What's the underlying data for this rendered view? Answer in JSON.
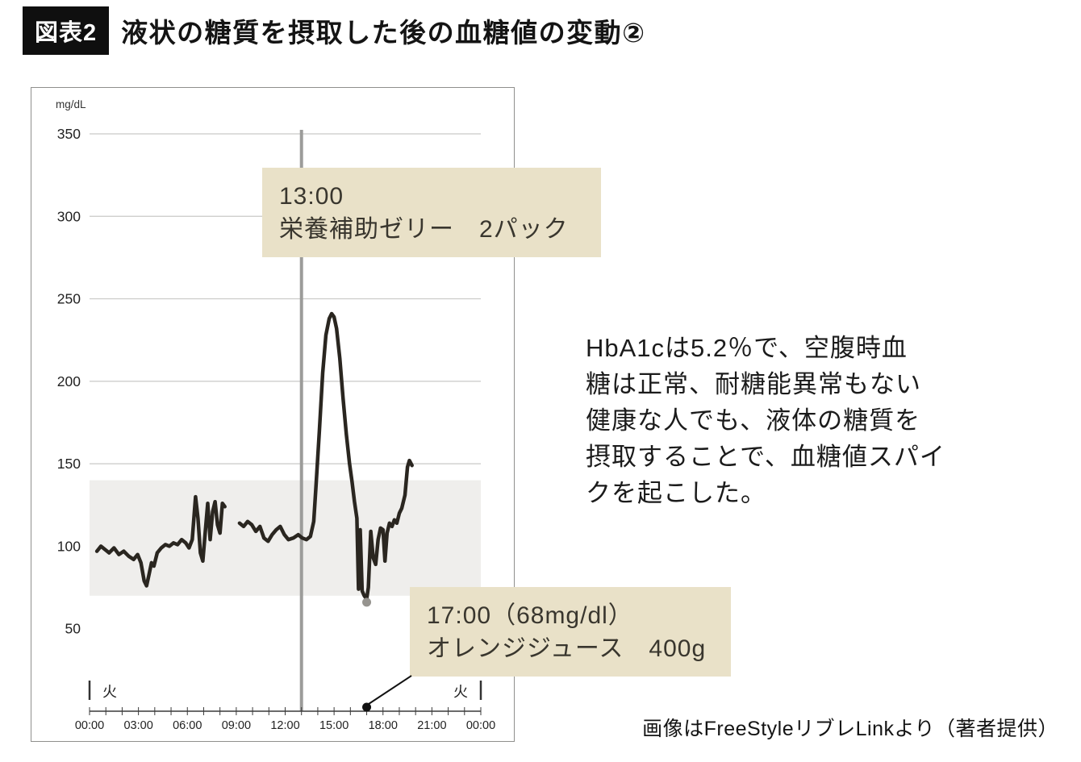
{
  "header": {
    "figure_label": "図表2",
    "title": "液状の糖質を摂取した後の血糖値の変動②"
  },
  "annotations": {
    "jelly": {
      "time": "13:00",
      "label": "栄養補助ゼリー　2パック"
    },
    "juice": {
      "time": "17:00（68mg/dl）",
      "label": "オレンジジュース　400g"
    }
  },
  "description": {
    "lines": [
      "HbA1cは5.2％で、空腹時血",
      "糖は正常、耐糖能異常もない",
      "健康な人でも、液体の糖質を",
      "摂取することで、血糖値スパイ",
      "クを起こした。"
    ]
  },
  "credit": {
    "text": "画像はFreeStyleリブレLinkより（著者提供）"
  },
  "colors": {
    "callout_bg": "#e9e1c8",
    "glucose_line": "#2a2620",
    "event_line": "#9c9c9a",
    "target_band": "#efeeec",
    "figure_label_bg": "#0f0f0f",
    "annotation_pointer": "#111111"
  },
  "chart_data": {
    "type": "line",
    "ylabel": "mg/dL",
    "ylim": [
      0,
      350
    ],
    "xlim_hours": [
      0,
      24
    ],
    "y_ticks": [
      350,
      300,
      250,
      200,
      150,
      100,
      50
    ],
    "gridline_values": [
      350,
      300,
      250,
      200,
      150
    ],
    "x_tick_hours": [
      0,
      3,
      6,
      9,
      12,
      15,
      18,
      21,
      24
    ],
    "x_tick_labels": [
      "00:00",
      "03:00",
      "06:00",
      "09:00",
      "12:00",
      "15:00",
      "18:00",
      "21:00",
      "00:00"
    ],
    "day_label_left": "火",
    "day_label_right": "火",
    "target_band": {
      "min": 70,
      "max": 140
    },
    "event_line_hour": 13,
    "low_point": {
      "hour": 17.0,
      "value": 68
    },
    "pointer_dot_hour": 17.0,
    "series": [
      {
        "name": "glucose",
        "unit": "mg/dL",
        "segments": [
          [
            [
              0.45,
              97
            ],
            [
              0.7,
              100
            ],
            [
              0.95,
              98
            ],
            [
              1.2,
              96
            ],
            [
              1.5,
              99
            ],
            [
              1.8,
              95
            ],
            [
              2.1,
              97
            ],
            [
              2.4,
              94
            ],
            [
              2.7,
              92
            ],
            [
              2.95,
              95
            ],
            [
              3.15,
              90
            ],
            [
              3.35,
              79
            ],
            [
              3.5,
              76
            ],
            [
              3.65,
              83
            ],
            [
              3.8,
              90
            ],
            [
              3.95,
              88
            ],
            [
              4.15,
              96
            ],
            [
              4.4,
              99
            ],
            [
              4.65,
              101
            ],
            [
              4.9,
              100
            ],
            [
              5.15,
              102
            ],
            [
              5.4,
              101
            ],
            [
              5.65,
              104
            ],
            [
              5.9,
              102
            ],
            [
              6.1,
              99
            ],
            [
              6.3,
              104
            ],
            [
              6.5,
              130
            ],
            [
              6.65,
              117
            ],
            [
              6.8,
              96
            ],
            [
              6.95,
              91
            ],
            [
              7.1,
              109
            ],
            [
              7.25,
              126
            ],
            [
              7.4,
              104
            ],
            [
              7.55,
              121
            ],
            [
              7.7,
              127
            ],
            [
              7.85,
              113
            ],
            [
              8.0,
              108
            ],
            [
              8.15,
              126
            ],
            [
              8.3,
              124
            ]
          ],
          [
            [
              9.2,
              114
            ],
            [
              9.45,
              112
            ],
            [
              9.7,
              115
            ],
            [
              9.95,
              113
            ],
            [
              10.2,
              109
            ],
            [
              10.45,
              112
            ],
            [
              10.7,
              105
            ],
            [
              10.95,
              103
            ],
            [
              11.2,
              107
            ],
            [
              11.45,
              110
            ],
            [
              11.7,
              112
            ],
            [
              11.95,
              107
            ],
            [
              12.2,
              104
            ],
            [
              12.5,
              105
            ],
            [
              12.8,
              107
            ],
            [
              13.05,
              105
            ],
            [
              13.3,
              104
            ],
            [
              13.55,
              106
            ],
            [
              13.75,
              115
            ],
            [
              13.9,
              138
            ],
            [
              14.1,
              170
            ],
            [
              14.3,
              205
            ],
            [
              14.5,
              228
            ],
            [
              14.7,
              238
            ],
            [
              14.85,
              241
            ],
            [
              15.0,
              239
            ],
            [
              15.15,
              232
            ],
            [
              15.35,
              214
            ],
            [
              15.55,
              190
            ],
            [
              15.75,
              168
            ],
            [
              15.95,
              150
            ],
            [
              16.1,
              139
            ],
            [
              16.25,
              127
            ],
            [
              16.4,
              117
            ],
            [
              16.5,
              74
            ],
            [
              16.6,
              110
            ],
            [
              16.72,
              73
            ],
            [
              16.85,
              70
            ],
            [
              17.0,
              68
            ],
            [
              17.1,
              75
            ],
            [
              17.25,
              109
            ],
            [
              17.4,
              93
            ],
            [
              17.55,
              89
            ],
            [
              17.7,
              104
            ],
            [
              17.85,
              111
            ],
            [
              18.0,
              110
            ],
            [
              18.12,
              91
            ],
            [
              18.25,
              108
            ],
            [
              18.4,
              114
            ],
            [
              18.55,
              112
            ],
            [
              18.7,
              116
            ],
            [
              18.85,
              114
            ],
            [
              19.0,
              120
            ],
            [
              19.15,
              123
            ],
            [
              19.35,
              131
            ],
            [
              19.5,
              148
            ],
            [
              19.62,
              152
            ],
            [
              19.78,
              149
            ]
          ]
        ]
      }
    ]
  }
}
